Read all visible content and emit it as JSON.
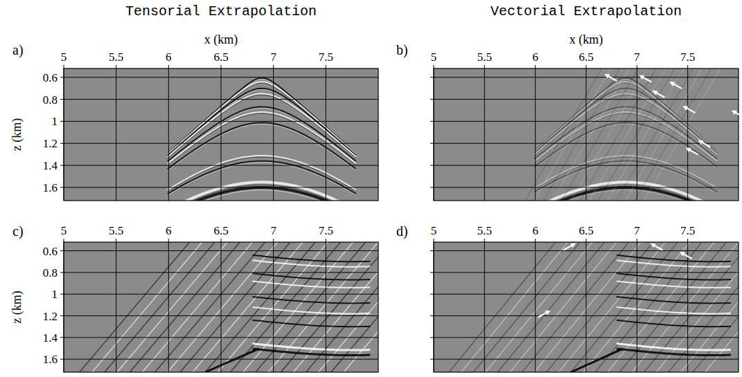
{
  "chart_data": [
    {
      "type": "seismic-image",
      "title": "Tensorial Extrapolation",
      "panel": "a)",
      "xlabel": "x (km)",
      "ylabel": "z (km)",
      "xlim": [
        5,
        8
      ],
      "xticks": [
        5,
        5.5,
        6,
        6.5,
        7,
        7.5
      ],
      "ylim": [
        0.52,
        1.72
      ],
      "yticks": [
        0.6,
        0.8,
        1,
        1.2,
        1.4,
        1.6
      ],
      "grid": true,
      "annotations": []
    },
    {
      "type": "seismic-image",
      "title": "Vectorial Extrapolation",
      "panel": "b)",
      "xlabel": "x (km)",
      "xlim": [
        5,
        8
      ],
      "xticks": [
        5,
        5.5,
        6,
        6.5,
        7,
        7.5
      ],
      "ylim": [
        0.52,
        1.72
      ],
      "yticks": [
        0.6,
        0.8,
        1,
        1.2,
        1.4,
        1.6
      ],
      "grid": true,
      "tick_labels": "x",
      "annotations": [
        {
          "x": 6.68,
          "z": 0.57
        },
        {
          "x": 7.02,
          "z": 0.58
        },
        {
          "x": 7.32,
          "z": 0.64
        },
        {
          "x": 7.15,
          "z": 0.72
        },
        {
          "x": 7.45,
          "z": 0.86
        },
        {
          "x": 7.93,
          "z": 0.9
        },
        {
          "x": 7.6,
          "z": 1.17
        },
        {
          "x": 7.48,
          "z": 1.24
        }
      ]
    },
    {
      "type": "seismic-image",
      "panel": "c)",
      "ylabel": "z (km)",
      "xlim": [
        5,
        8
      ],
      "xticks": [
        5,
        5.5,
        6,
        6.5,
        7,
        7.5
      ],
      "ylim": [
        0.52,
        1.72
      ],
      "yticks": [
        0.6,
        0.8,
        1,
        1.2,
        1.4,
        1.6
      ],
      "grid": true,
      "annotations": []
    },
    {
      "type": "seismic-image",
      "panel": "d)",
      "xlim": [
        5,
        8
      ],
      "xticks": [
        5,
        5.5,
        6,
        6.5,
        7,
        7.5
      ],
      "ylim": [
        0.52,
        1.72
      ],
      "yticks": [
        0.6,
        0.8,
        1,
        1.2,
        1.4,
        1.6
      ],
      "grid": true,
      "tick_labels": "x",
      "annotations": [
        {
          "x": 6.4,
          "z": 0.53
        },
        {
          "x": 7.13,
          "z": 0.53
        },
        {
          "x": 7.42,
          "z": 0.61
        },
        {
          "x": 6.15,
          "z": 1.15
        }
      ]
    }
  ]
}
